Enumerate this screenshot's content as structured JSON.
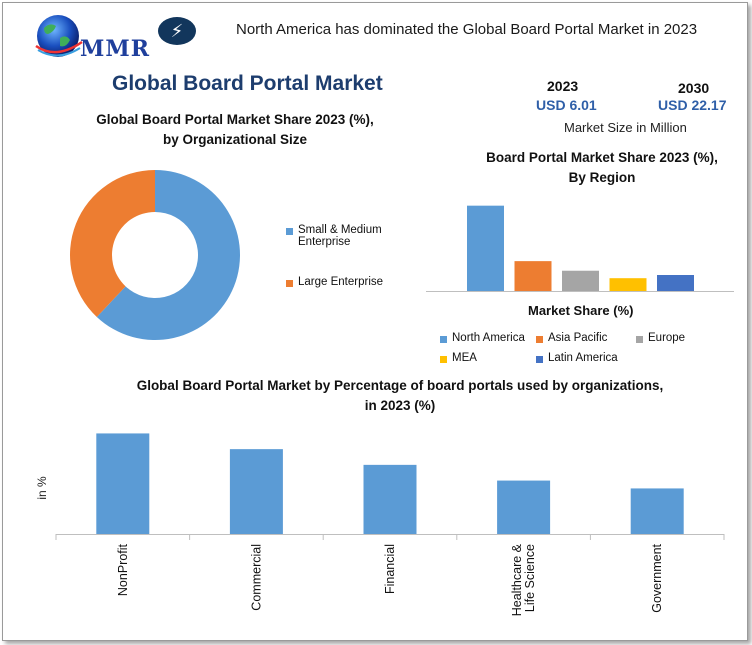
{
  "header": {
    "logo_text": "MMR",
    "headline": "North America has dominated the Global Board Portal Market in 2023"
  },
  "main_title": "Global Board Portal Market",
  "market_size": {
    "year_a": "2023",
    "value_a": "USD 6.01",
    "year_b": "2030",
    "value_b": "USD 22.17",
    "caption": "Market Size in Million"
  },
  "colors": {
    "blue": "#5b9bd5",
    "orange": "#ed7d31",
    "gray": "#a5a5a5",
    "yellow": "#ffc000",
    "dark_blue": "#4472c4"
  },
  "chart_data": [
    {
      "type": "pie",
      "donut": true,
      "title": "Global Board Portal Market Share 2023 (%), by Organizational Size",
      "title_line1": "Global Board Portal Market Share 2023 (%),",
      "title_line2": "by Organizational Size",
      "categories": [
        "Small & Medium Enterprise",
        "Large Enterprise"
      ],
      "values": [
        62,
        38
      ],
      "legend_placement": "right"
    },
    {
      "type": "bar",
      "title": "Board Portal Market Share 2023 (%), By Region",
      "title_line1": "Board Portal Market Share 2023 (%),",
      "title_line2": "By Region",
      "xlabel": "Market Share (%)",
      "categories": [
        "North America",
        "Asia Pacific",
        "Europe",
        "MEA",
        "Latin America"
      ],
      "values": [
        40,
        14,
        9.5,
        6,
        7.5
      ],
      "ylim": [
        0,
        45
      ],
      "legend_placement": "bottom"
    },
    {
      "type": "bar",
      "title": "Global Board Portal Market by Percentage of board portals used by organizations, in 2023 (%)",
      "title_line1": "Global Board Portal Market by Percentage of board portals used by organizations,",
      "title_line2": "in 2023 (%)",
      "ylabel": "in %",
      "categories": [
        "NonProfit",
        "Commercial",
        "Financial",
        "Healthcare & Life Science",
        "Government"
      ],
      "category_lines": [
        [
          "NonProfit"
        ],
        [
          "Commercial"
        ],
        [
          "Financial"
        ],
        [
          "Healthcare &",
          "Life Science"
        ],
        [
          "Government"
        ]
      ],
      "values": [
        64,
        54,
        44,
        34,
        29
      ],
      "ylim": [
        0,
        70
      ]
    }
  ]
}
